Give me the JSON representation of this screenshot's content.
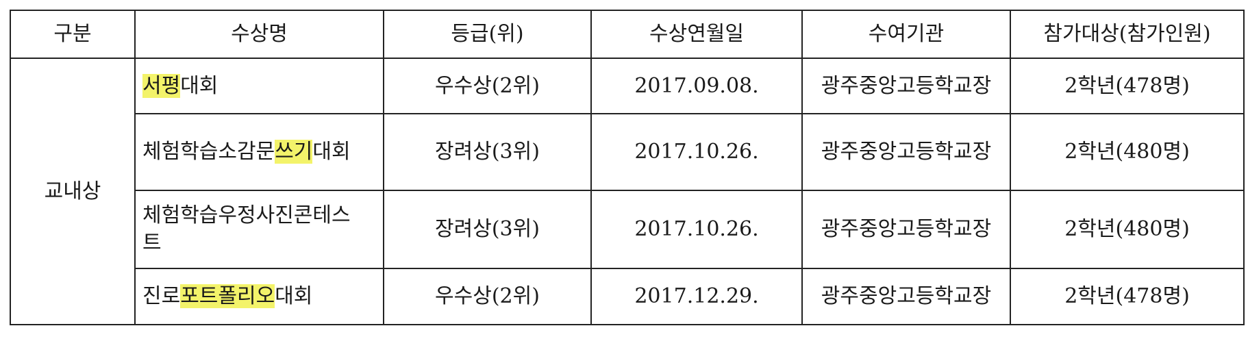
{
  "table": {
    "headers": {
      "category": "구분",
      "award_name": "수상명",
      "grade": "등급(위)",
      "date": "수상연월일",
      "issuer": "수여기관",
      "participants": "참가대상(참가인원)"
    },
    "category_value": "교내상",
    "rows": [
      {
        "name_parts": [
          {
            "text": "서평",
            "highlight": true
          },
          {
            "text": "대회",
            "highlight": false
          }
        ],
        "grade": "우수상(2위)",
        "date": "2017.09.08.",
        "issuer": "광주중앙고등학교장",
        "participants": "2학년(478명)"
      },
      {
        "name_parts": [
          {
            "text": "체험학습소감문",
            "highlight": false
          },
          {
            "text": "쓰기",
            "highlight": true
          },
          {
            "text": "대회",
            "highlight": false
          }
        ],
        "grade": "장려상(3위)",
        "date": "2017.10.26.",
        "issuer": "광주중앙고등학교장",
        "participants": "2학년(480명)"
      },
      {
        "name_parts": [
          {
            "text": "체험학습우정사진콘테스트",
            "highlight": false
          }
        ],
        "grade": "장려상(3위)",
        "date": "2017.10.26.",
        "issuer": "광주중앙고등학교장",
        "participants": "2학년(480명)"
      },
      {
        "name_parts": [
          {
            "text": "진로",
            "highlight": false
          },
          {
            "text": "포트폴리오",
            "highlight": true
          },
          {
            "text": "대회",
            "highlight": false
          }
        ],
        "grade": "우수상(2위)",
        "date": "2017.12.29.",
        "issuer": "광주중앙고등학교장",
        "participants": "2학년(478명)"
      }
    ],
    "highlight_color": "#f3f36a"
  }
}
